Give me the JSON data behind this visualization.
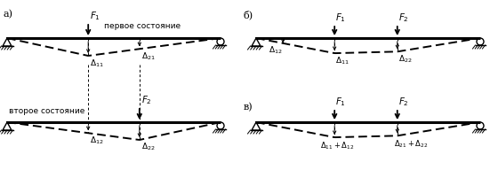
{
  "bg_color": "#ffffff",
  "line_color": "#000000",
  "label_a": "а)",
  "label_b": "б)",
  "label_v": "в)",
  "text_first": "первое состояние",
  "text_second": "второе состояние",
  "fontsize_label": 8,
  "fontsize_text": 6.5,
  "fontsize_delta": 6.5,
  "fontsize_F": 7.5
}
